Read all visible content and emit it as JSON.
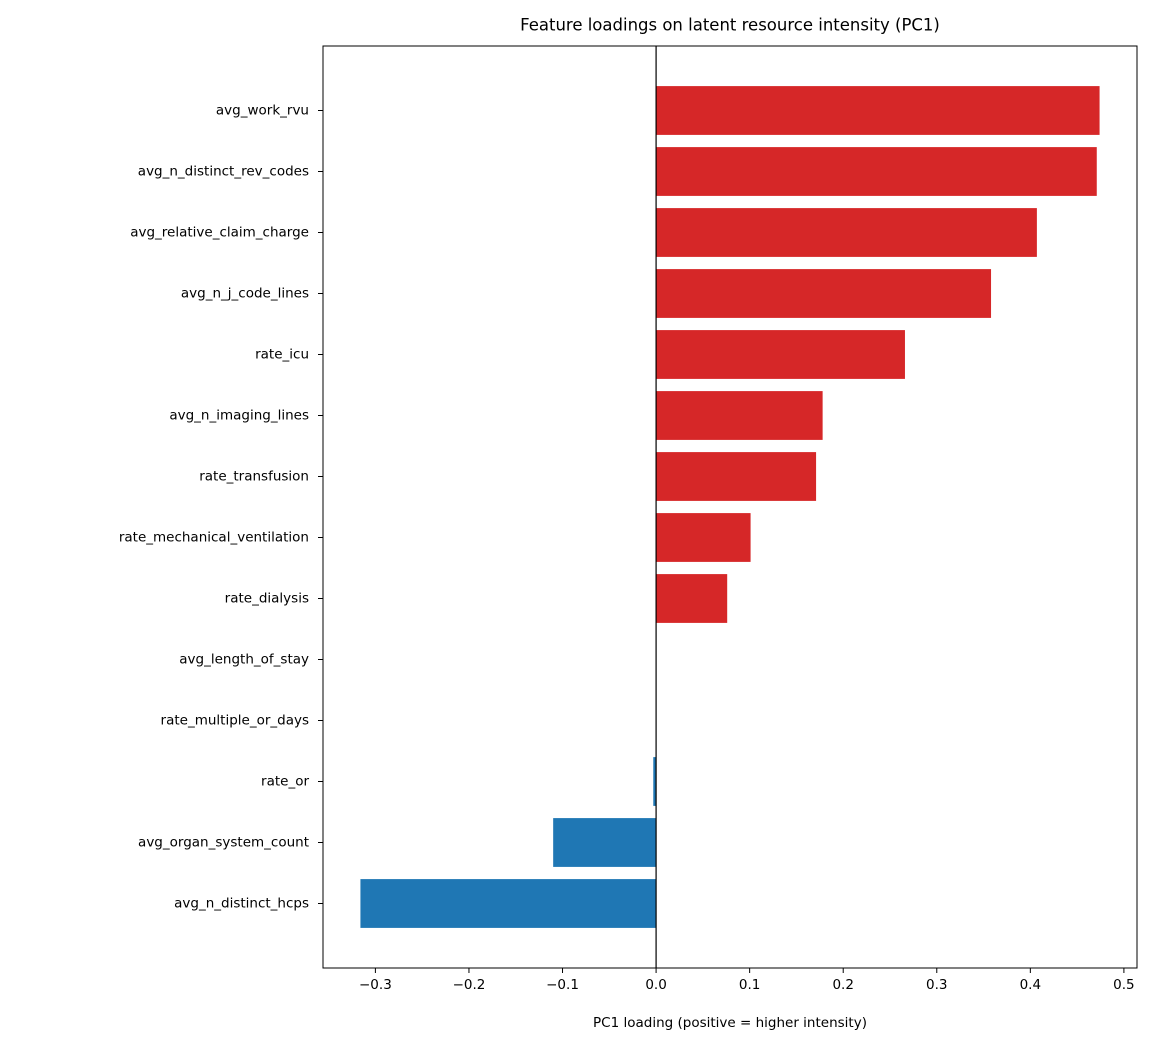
{
  "chart_data": {
    "type": "barh",
    "title": "Feature loadings on latent resource intensity (PC1)",
    "x_label": "PC1 loading (positive = higher intensity)",
    "categories": [
      "avg_work_rvu",
      "avg_n_distinct_rev_codes",
      "avg_relative_claim_charge",
      "avg_n_j_code_lines",
      "rate_icu",
      "avg_n_imaging_lines",
      "rate_transfusion",
      "rate_mechanical_ventilation",
      "rate_dialysis",
      "avg_length_of_stay",
      "rate_multiple_or_days",
      "rate_or",
      "avg_organ_system_count",
      "avg_n_distinct_hcps"
    ],
    "values": [
      0.474,
      0.471,
      0.407,
      0.358,
      0.266,
      0.178,
      0.171,
      0.101,
      0.076,
      0,
      0,
      -0.003,
      -0.11,
      -0.316
    ],
    "positive_color": "#d62728",
    "negative_color": "#1f77b4",
    "xlim": [
      -0.356,
      0.514
    ],
    "xticks": [
      {
        "value": -0.3,
        "label": "−0.3"
      },
      {
        "value": -0.2,
        "label": "−0.2"
      },
      {
        "value": -0.1,
        "label": "−0.1"
      },
      {
        "value": 0,
        "label": "0.0"
      },
      0.1,
      0.2,
      0.3,
      0.4,
      0.5
    ],
    "zero_line": true
  }
}
